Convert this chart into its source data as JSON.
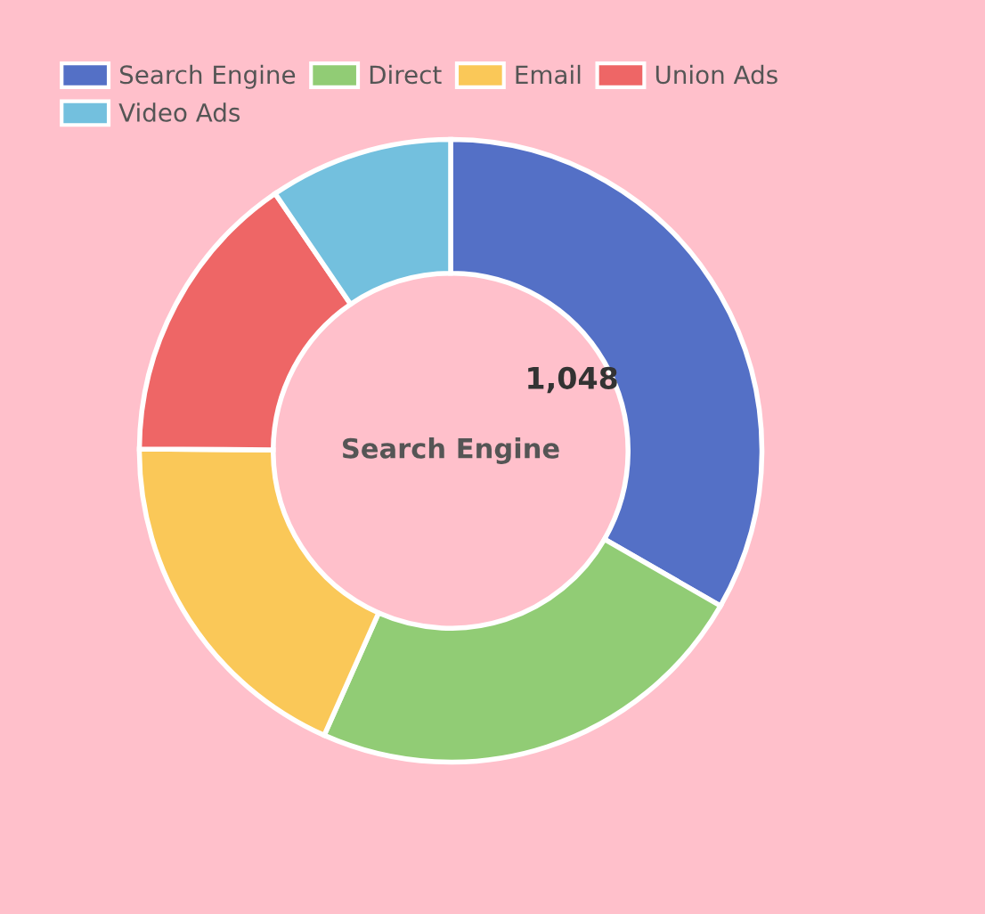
{
  "chart_data": {
    "type": "donut",
    "categories": [
      "Search Engine",
      "Direct",
      "Email",
      "Union Ads",
      "Video Ads"
    ],
    "values": [
      1048,
      735,
      580,
      484,
      300
    ],
    "colors": [
      "#5470c6",
      "#91cc75",
      "#fac858",
      "#ee6666",
      "#73c0de"
    ],
    "value_labels": [
      "1,048",
      null,
      null,
      null,
      null
    ],
    "annotations": [
      "Search Engine"
    ],
    "legend": "top left"
  }
}
